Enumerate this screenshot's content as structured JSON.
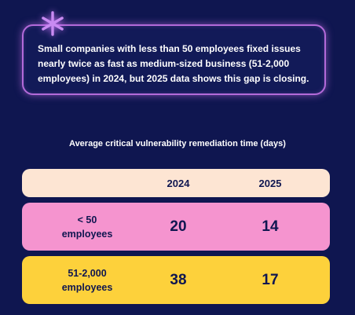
{
  "callout": {
    "text": "Small companies with less than 50 employees fixed issues nearly twice as fast as medium-sized business (51-2,000 employees) in 2024, but 2025 data shows this gap is closing."
  },
  "table": {
    "title": "Average critical vulnerability remediation time (days)",
    "header": {
      "label": "",
      "col_2024": "2024",
      "col_2025": "2025"
    },
    "rows": [
      {
        "label_line1": "< 50",
        "label_line2": "employees",
        "v2024": "20",
        "v2025": "14"
      },
      {
        "label_line1": "51-2,000",
        "label_line2": "employees",
        "v2024": "38",
        "v2025": "17"
      }
    ]
  },
  "colors": {
    "background": "#0f1650",
    "callout_border": "#b36ad9",
    "header_row": "#fde5d3",
    "small_row": "#f594cf",
    "mid_row": "#fdd13b",
    "asterisk": "#c98bf2"
  },
  "icons": {
    "decoration": "asterisk-icon"
  }
}
